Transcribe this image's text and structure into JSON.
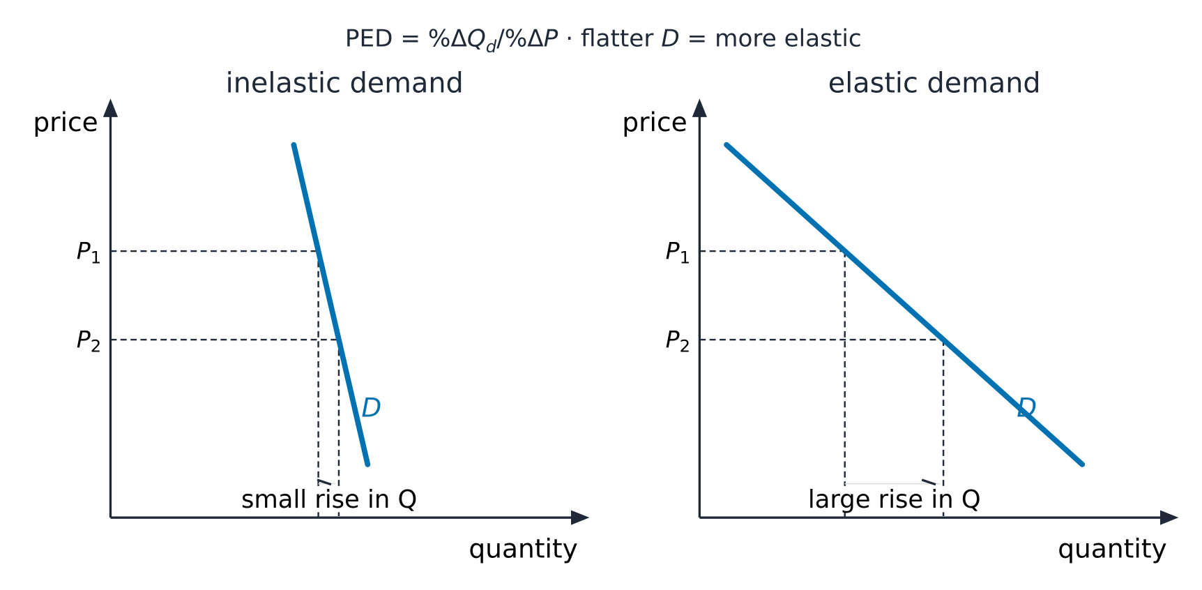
{
  "title": {
    "prefix": "PED  = %Δ",
    "q": "Q",
    "d": "d",
    "mid": "/%Δ",
    "p": "P",
    "sep": "  ·  flatter ",
    "demand": "D",
    "suffix": " = more elastic"
  },
  "panels": [
    {
      "title": "inelastic demand",
      "y_label": "price",
      "x_label": "quantity",
      "p1": {
        "letter": "P",
        "sub": "1"
      },
      "p2": {
        "letter": "P",
        "sub": "2"
      },
      "curve_label": "D",
      "annotation": "small rise in Q"
    },
    {
      "title": "elastic demand",
      "y_label": "price",
      "x_label": "quantity",
      "p1": {
        "letter": "P",
        "sub": "1"
      },
      "p2": {
        "letter": "P",
        "sub": "2"
      },
      "curve_label": "D",
      "annotation": "large rise in Q"
    }
  ]
}
